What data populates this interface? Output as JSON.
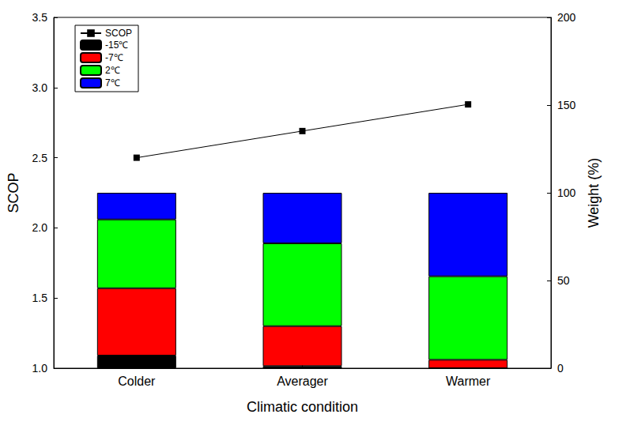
{
  "chart_data": {
    "type": "bar",
    "stacked": true,
    "grid": false,
    "legend": "upper left",
    "categories": [
      "Colder",
      "Averager",
      "Warmer"
    ],
    "x_label": "Climatic condition",
    "y_label": "SCOP",
    "y2_label": "Weight (%)",
    "ylim": [
      1.0,
      3.5
    ],
    "yticks": [
      {
        "value": 1.0,
        "label": "1.0"
      },
      {
        "value": 1.5,
        "label": "1.5"
      },
      {
        "value": 2.0,
        "label": "2.0"
      },
      {
        "value": 2.5,
        "label": "2.5"
      },
      {
        "value": 3.0,
        "label": "3.0"
      },
      {
        "value": 3.5,
        "label": "3.5"
      }
    ],
    "y2lim": [
      0,
      200
    ],
    "y2ticks": [
      0,
      50,
      100,
      150,
      200
    ],
    "series": [
      {
        "name": "SCOP",
        "type": "line",
        "axis": "y",
        "color": "#000000",
        "marker": "square",
        "line_style": "solid",
        "values": [
          2.5,
          2.69,
          2.88
        ]
      },
      {
        "name": "-15℃",
        "type": "bar",
        "axis": "y2",
        "color": "#000000",
        "values": [
          7.2,
          1.2,
          0
        ]
      },
      {
        "name": "-7℃",
        "type": "bar",
        "axis": "y2",
        "color": "#ff0000",
        "values": [
          38.4,
          22.8,
          4.8
        ]
      },
      {
        "name": "2℃",
        "type": "bar",
        "axis": "y2",
        "color": "#00ff00",
        "values": [
          39.2,
          47.2,
          47.6
        ]
      },
      {
        "name": "7℃",
        "type": "bar",
        "axis": "y2",
        "color": "#0000ff",
        "values": [
          15.2,
          28.8,
          47.6
        ]
      }
    ]
  }
}
